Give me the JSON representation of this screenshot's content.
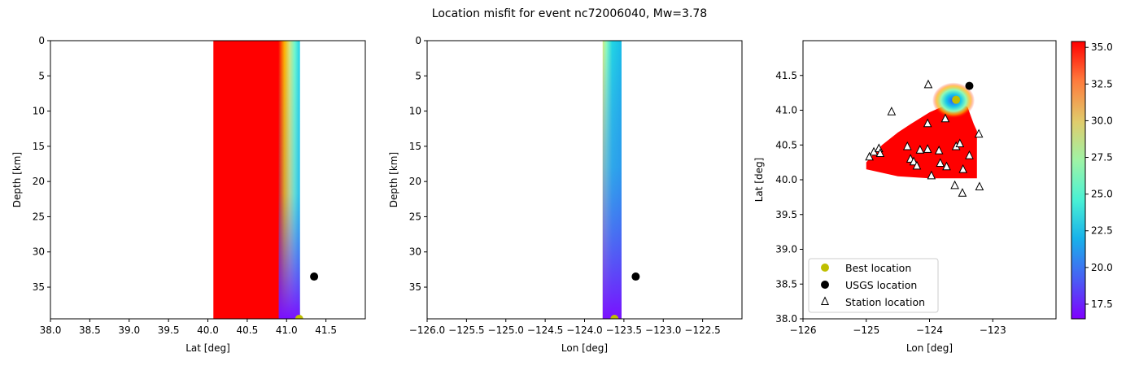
{
  "chart_data": {
    "title": "Location misfit for event nc72006040, Mw=3.78",
    "panels": [
      {
        "type": "heatmap",
        "xlabel": "Lat [deg]",
        "ylabel": "Depth [km]",
        "xlim": [
          38.0,
          42.0
        ],
        "ylim": [
          39.5,
          0
        ],
        "xticks": [
          "38.0",
          "38.5",
          "39.0",
          "39.5",
          "40.0",
          "40.5",
          "41.0",
          "41.5"
        ],
        "yticks": [
          "0",
          "5",
          "10",
          "15",
          "20",
          "25",
          "30",
          "35"
        ],
        "misfit_band": {
          "x_range": [
            40.07,
            41.17
          ],
          "saturated_until": 40.9,
          "low_edge": 41.17,
          "value_top": 27,
          "value_bottom": 16.5
        },
        "best_location": {
          "x": 41.16,
          "y": 39.5
        },
        "usgs_location": {
          "x": 41.35,
          "y": 33.5
        }
      },
      {
        "type": "heatmap",
        "xlabel": "Lon [deg]",
        "ylabel": "Depth [km]",
        "xlim": [
          -126.0,
          -122.0
        ],
        "ylim": [
          39.5,
          0
        ],
        "xticks": [
          "−126.0",
          "−125.5",
          "−125.0",
          "−124.5",
          "−124.0",
          "−123.5",
          "−123.0",
          "−122.5"
        ],
        "yticks": [
          "0",
          "5",
          "10",
          "15",
          "20",
          "25",
          "30",
          "35"
        ],
        "misfit_band": {
          "x_range": [
            -123.77,
            -123.53
          ],
          "value_left_top": 27,
          "value_right_top": 22,
          "value_bottom": 16.5
        },
        "best_location": {
          "x": -123.62,
          "y": 39.5
        },
        "usgs_location": {
          "x": -123.35,
          "y": 33.5
        }
      },
      {
        "type": "heatmap",
        "xlabel": "Lon [deg]",
        "ylabel": "Lat [deg]",
        "xlim": [
          -126.0,
          -122.0
        ],
        "ylim": [
          38.0,
          42.0
        ],
        "xticks": [
          "−126",
          "−125",
          "−124",
          "−123"
        ],
        "yticks": [
          "38.0",
          "38.5",
          "39.0",
          "39.5",
          "40.0",
          "40.5",
          "41.0",
          "41.5"
        ],
        "misfit_region_outline": [
          [
            -125.0,
            40.25
          ],
          [
            -124.75,
            40.5
          ],
          [
            -124.5,
            40.68
          ],
          [
            -124.3,
            40.8
          ],
          [
            -124.0,
            40.97
          ],
          [
            -123.8,
            41.05
          ],
          [
            -123.6,
            41.1
          ],
          [
            -123.4,
            41.05
          ],
          [
            -123.3,
            40.8
          ],
          [
            -123.25,
            40.7
          ],
          [
            -123.25,
            40.02
          ],
          [
            -124.0,
            40.02
          ],
          [
            -124.5,
            40.05
          ],
          [
            -125.0,
            40.15
          ]
        ],
        "misfit_low_center": {
          "x": -123.62,
          "y": 41.14
        },
        "best_location": {
          "x": -123.58,
          "y": 41.15
        },
        "usgs_location": {
          "x": -123.37,
          "y": 41.35
        },
        "stations": [
          {
            "x": -124.95,
            "y": 40.33
          },
          {
            "x": -124.88,
            "y": 40.4
          },
          {
            "x": -124.8,
            "y": 40.45
          },
          {
            "x": -124.78,
            "y": 40.38
          },
          {
            "x": -124.6,
            "y": 40.98
          },
          {
            "x": -124.02,
            "y": 41.37
          },
          {
            "x": -124.03,
            "y": 40.81
          },
          {
            "x": -123.75,
            "y": 40.88
          },
          {
            "x": -124.35,
            "y": 40.48
          },
          {
            "x": -124.3,
            "y": 40.3
          },
          {
            "x": -124.25,
            "y": 40.26
          },
          {
            "x": -124.2,
            "y": 40.2
          },
          {
            "x": -124.15,
            "y": 40.43
          },
          {
            "x": -124.03,
            "y": 40.44
          },
          {
            "x": -123.97,
            "y": 40.06
          },
          {
            "x": -123.85,
            "y": 40.42
          },
          {
            "x": -123.83,
            "y": 40.24
          },
          {
            "x": -123.73,
            "y": 40.19
          },
          {
            "x": -123.58,
            "y": 40.48
          },
          {
            "x": -123.52,
            "y": 40.52
          },
          {
            "x": -123.47,
            "y": 40.15
          },
          {
            "x": -123.37,
            "y": 40.35
          },
          {
            "x": -123.6,
            "y": 39.92
          },
          {
            "x": -123.48,
            "y": 39.81
          },
          {
            "x": -123.21,
            "y": 39.9
          },
          {
            "x": -123.22,
            "y": 40.66
          }
        ],
        "legend": {
          "placement": "lower-left",
          "entries": [
            {
              "label": "Best location",
              "marker": "circle",
              "color": "#bfbf00"
            },
            {
              "label": "USGS location",
              "marker": "circle",
              "color": "#000000"
            },
            {
              "label": "Station location",
              "marker": "triangle-open",
              "color": "#000000"
            }
          ]
        }
      }
    ],
    "colorbar": {
      "colormap": "rainbow",
      "range": [
        16.5,
        35.4
      ],
      "ticks": [
        "17.5",
        "20.0",
        "22.5",
        "25.0",
        "27.5",
        "30.0",
        "32.5",
        "35.0"
      ]
    },
    "colors": {
      "best": "#bfbf00",
      "usgs": "#000000",
      "saturated": "#ff0000"
    }
  }
}
